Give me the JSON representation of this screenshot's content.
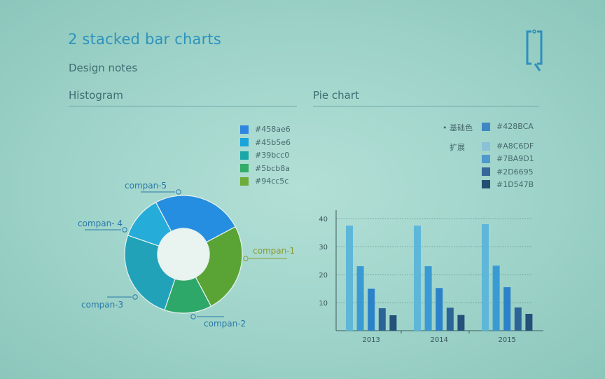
{
  "page": {
    "title": "2 stacked bar charts",
    "subtitle": "Design notes",
    "section_histogram": "Histogram",
    "section_pie": "Pie chart"
  },
  "icons": {
    "logo": "bracket-q-logo-icon"
  },
  "colors": {
    "title": "#2d93bd",
    "text": "#3f6e72",
    "ring_callout": "#2779a8",
    "company1_callout": "#8a9a2e"
  },
  "color_palette": {
    "base_label": "基础色",
    "base_hex": "#428BCA",
    "ext_label": "扩展",
    "ext_hexes": [
      "#A8C6DF",
      "#7BA9D1",
      "#2D6695",
      "#1D547B"
    ]
  },
  "chart_data": [
    {
      "type": "pie",
      "variant": "donut",
      "categories": [
        "compan-1",
        "compan-2",
        "compan-3",
        "compan- 4",
        "compan-5"
      ],
      "values": [
        25,
        13,
        25,
        12,
        25
      ],
      "colors": [
        "#5aa436",
        "#2ea868",
        "#21a2b9",
        "#26acd8",
        "#258ee0"
      ],
      "legend": [
        "#458ae6",
        "#45b5e6",
        "#39bcc0",
        "#5bcb8a",
        "#94cc5c"
      ],
      "legend_colors": [
        "#2f86e0",
        "#1ba3dc",
        "#1ba7a8",
        "#32ac66",
        "#6cac38"
      ],
      "legend_position": "top-right"
    },
    {
      "type": "bar",
      "categories": [
        "2013",
        "2014",
        "2015"
      ],
      "series": [
        {
          "values": [
            37.5,
            37.5,
            38
          ],
          "color": "#5eb7d9"
        },
        {
          "values": [
            23,
            23,
            23.2
          ],
          "color": "#3a9bd4"
        },
        {
          "values": [
            15,
            15.2,
            15.5
          ],
          "color": "#2c82c9"
        },
        {
          "values": [
            8,
            8.2,
            8.3
          ],
          "color": "#2b6597"
        },
        {
          "values": [
            5.5,
            5.6,
            6
          ],
          "color": "#24507a"
        }
      ],
      "yticks": [
        10,
        20,
        30,
        40
      ],
      "ylim": [
        0,
        43
      ],
      "grid": "horizontal"
    }
  ]
}
